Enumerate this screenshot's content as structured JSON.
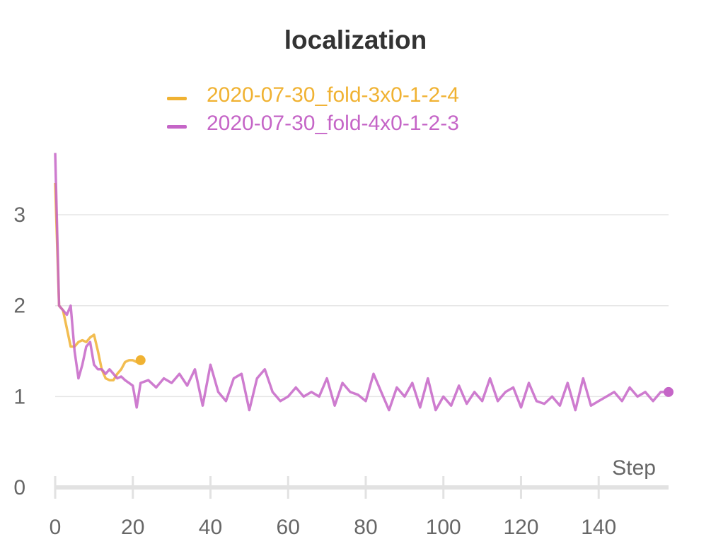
{
  "chart_data": {
    "type": "line",
    "title": "localization",
    "xlabel": "Step",
    "ylabel": "",
    "xlim": [
      0,
      158
    ],
    "ylim": [
      0,
      3.7
    ],
    "xticks": [
      0,
      20,
      40,
      60,
      80,
      100,
      120,
      140
    ],
    "yticks": [
      0,
      1,
      2,
      3
    ],
    "grid": true,
    "legend_position": "top-center",
    "series": [
      {
        "name": "2020-07-30_fold-3x0-1-2-4",
        "color": "#f0b232",
        "x": [
          0,
          1,
          2,
          3,
          4,
          5,
          6,
          7,
          8,
          9,
          10,
          11,
          12,
          13,
          14,
          15,
          16,
          17,
          18,
          19,
          20,
          21,
          22
        ],
        "y": [
          3.35,
          2.0,
          1.95,
          1.75,
          1.55,
          1.55,
          1.6,
          1.62,
          1.6,
          1.65,
          1.68,
          1.5,
          1.3,
          1.2,
          1.18,
          1.18,
          1.25,
          1.3,
          1.38,
          1.4,
          1.4,
          1.38,
          1.4
        ]
      },
      {
        "name": "2020-07-30_fold-4x0-1-2-3",
        "color": "#c565c7",
        "x": [
          0,
          1,
          2,
          3,
          4,
          5,
          6,
          7,
          8,
          9,
          10,
          11,
          12,
          13,
          14,
          15,
          16,
          17,
          18,
          19,
          20,
          21,
          22,
          24,
          26,
          28,
          30,
          32,
          34,
          36,
          38,
          40,
          42,
          44,
          46,
          48,
          50,
          52,
          54,
          56,
          58,
          60,
          62,
          64,
          66,
          68,
          70,
          72,
          74,
          76,
          78,
          80,
          82,
          84,
          86,
          88,
          90,
          92,
          94,
          96,
          98,
          100,
          102,
          104,
          106,
          108,
          110,
          112,
          114,
          116,
          118,
          120,
          122,
          124,
          126,
          128,
          130,
          132,
          134,
          136,
          138,
          140,
          142,
          144,
          146,
          148,
          150,
          152,
          154,
          156,
          158
        ],
        "y": [
          3.68,
          2.0,
          1.95,
          1.9,
          2.0,
          1.5,
          1.2,
          1.35,
          1.55,
          1.6,
          1.35,
          1.3,
          1.3,
          1.25,
          1.3,
          1.25,
          1.2,
          1.22,
          1.18,
          1.15,
          1.12,
          0.88,
          1.15,
          1.18,
          1.1,
          1.2,
          1.15,
          1.25,
          1.12,
          1.3,
          0.9,
          1.35,
          1.05,
          0.95,
          1.2,
          1.25,
          0.85,
          1.2,
          1.3,
          1.05,
          0.95,
          1.0,
          1.1,
          1.0,
          1.05,
          1.0,
          1.2,
          0.9,
          1.15,
          1.05,
          1.02,
          0.95,
          1.25,
          1.05,
          0.85,
          1.1,
          1.0,
          1.15,
          0.88,
          1.2,
          0.85,
          1.0,
          0.9,
          1.12,
          0.92,
          1.05,
          0.95,
          1.2,
          0.95,
          1.05,
          1.1,
          0.88,
          1.15,
          0.95,
          0.92,
          1.0,
          0.9,
          1.15,
          0.85,
          1.2,
          0.9,
          0.95,
          1.0,
          1.05,
          0.95,
          1.1,
          1.0,
          1.05,
          0.95,
          1.05,
          1.05
        ]
      }
    ]
  }
}
